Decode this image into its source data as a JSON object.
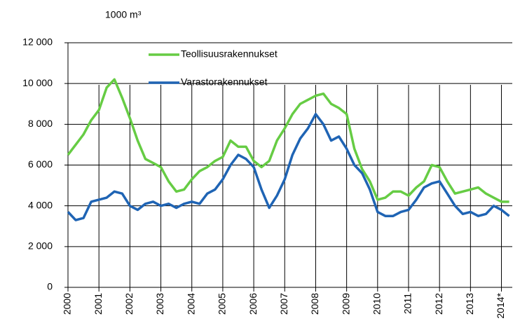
{
  "chart_data": {
    "type": "line",
    "unit_label": "1000 m³",
    "x": [
      2000,
      2000.25,
      2000.5,
      2000.75,
      2001,
      2001.25,
      2001.5,
      2001.75,
      2002,
      2002.25,
      2002.5,
      2002.75,
      2003,
      2003.25,
      2003.5,
      2003.75,
      2004,
      2004.25,
      2004.5,
      2004.75,
      2005,
      2005.25,
      2005.5,
      2005.75,
      2006,
      2006.25,
      2006.5,
      2006.75,
      2007,
      2007.25,
      2007.5,
      2007.75,
      2008,
      2008.25,
      2008.5,
      2008.75,
      2009,
      2009.25,
      2009.5,
      2009.75,
      2010,
      2010.25,
      2010.5,
      2010.75,
      2011,
      2011.25,
      2011.5,
      2011.75,
      2012,
      2012.25,
      2012.5,
      2012.75,
      2013,
      2013.25,
      2013.5,
      2013.75,
      2014,
      2014.25
    ],
    "series": [
      {
        "name": "Teollisuusrakennukset",
        "color": "#66cc44",
        "values": [
          6500,
          7000,
          7500,
          8200,
          8700,
          9800,
          10200,
          9300,
          8300,
          7200,
          6300,
          6100,
          5900,
          5200,
          4700,
          4800,
          5300,
          5700,
          5900,
          6200,
          6400,
          7200,
          6900,
          6900,
          6200,
          5900,
          6200,
          7200,
          7800,
          8500,
          9000,
          9200,
          9400,
          9500,
          9000,
          8800,
          8500,
          6800,
          5800,
          5200,
          4300,
          4400,
          4700,
          4700,
          4500,
          4900,
          5200,
          6000,
          5900,
          5200,
          4600,
          4700,
          4800,
          4900,
          4600,
          4400,
          4200,
          4200
        ]
      },
      {
        "name": "Varastorakennukset",
        "color": "#1f64b4",
        "values": [
          3700,
          3300,
          3400,
          4200,
          4300,
          4400,
          4700,
          4600,
          4000,
          3800,
          4100,
          4200,
          4000,
          4100,
          3900,
          4100,
          4200,
          4100,
          4600,
          4800,
          5300,
          6000,
          6500,
          6300,
          5900,
          4800,
          3900,
          4500,
          5300,
          6500,
          7300,
          7800,
          8500,
          8000,
          7200,
          7400,
          6800,
          6000,
          5600,
          4800,
          3700,
          3500,
          3500,
          3700,
          3800,
          4300,
          4900,
          5100,
          5200,
          4600,
          4000,
          3600,
          3700,
          3500,
          3600,
          4000,
          3800,
          3500
        ]
      }
    ],
    "xlim": [
      2000,
      2014.35
    ],
    "xticks": [
      2000,
      2001,
      2002,
      2003,
      2004,
      2005,
      2006,
      2007,
      2008,
      2009,
      2010,
      2011,
      2012,
      2013,
      {
        "value": 2014,
        "label": "2014*"
      }
    ],
    "ylim": [
      0,
      12000
    ],
    "yticks": [
      0,
      {
        "value": 2000,
        "label": "2 000"
      },
      {
        "value": 4000,
        "label": "4 000"
      },
      {
        "value": 6000,
        "label": "6 000"
      },
      {
        "value": 8000,
        "label": "8 000"
      },
      {
        "value": 10000,
        "label": "10 000"
      },
      {
        "value": 12000,
        "label": "12 000"
      }
    ],
    "grid": true
  }
}
